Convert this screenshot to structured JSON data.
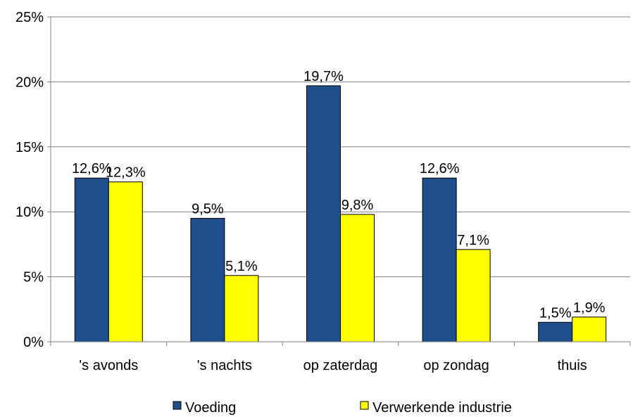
{
  "chart_data": {
    "type": "bar",
    "categories": [
      "'s avonds",
      "'s nachts",
      "op zaterdag",
      "op zondag",
      "thuis"
    ],
    "series": [
      {
        "name": "Voeding",
        "color": "#1F4E8C",
        "values": [
          12.6,
          9.5,
          19.7,
          12.6,
          1.5
        ],
        "labels": [
          "12,6%",
          "9,5%",
          "19,7%",
          "12,6%",
          "1,5%"
        ]
      },
      {
        "name": "Verwerkende industrie",
        "color": "#FFFF00",
        "values": [
          12.3,
          5.1,
          9.8,
          7.1,
          1.9
        ],
        "labels": [
          "12,3%",
          "5,1%",
          "9,8%",
          "7,1%",
          "1,9%"
        ]
      }
    ],
    "y_ticks": [
      0,
      5,
      10,
      15,
      20,
      25
    ],
    "y_tick_labels": [
      "0%",
      "5%",
      "10%",
      "15%",
      "20%",
      "25%"
    ],
    "ylim": [
      0,
      25
    ],
    "grid": true,
    "legend_position": "bottom"
  }
}
